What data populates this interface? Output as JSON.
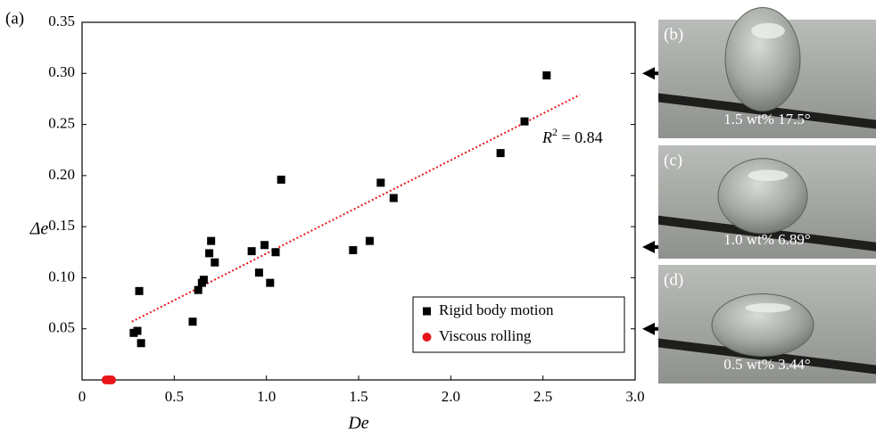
{
  "chart_data": {
    "type": "scatter",
    "panel_label": "(a)",
    "x_label": "De",
    "y_label": "Δe",
    "xlim": [
      0,
      3.0
    ],
    "ylim": [
      0,
      0.35
    ],
    "xticks": [
      0,
      0.5,
      {
        "value": 1,
        "label": "1.0"
      },
      1.5,
      {
        "value": 2,
        "label": "2.0"
      },
      2.5,
      {
        "value": 3,
        "label": "3.0"
      }
    ],
    "yticks": [
      0.05,
      {
        "value": 0.1,
        "label": "0.10"
      },
      0.15,
      {
        "value": 0.2,
        "label": "0.20"
      },
      0.25,
      {
        "value": 0.3,
        "label": "0.30"
      },
      0.35
    ],
    "legend": "lower right",
    "series": [
      {
        "name": "Rigid body motion",
        "color": "#000000",
        "marker": "square",
        "x": [
          0.28,
          0.3,
          0.31,
          0.32,
          0.6,
          0.63,
          0.65,
          0.66,
          0.69,
          0.7,
          0.72,
          0.92,
          0.96,
          0.99,
          1.02,
          1.05,
          1.08,
          1.47,
          1.56,
          1.62,
          1.69,
          2.27,
          2.4,
          2.52
        ],
        "values": [
          0.046,
          0.048,
          0.087,
          0.036,
          0.057,
          0.088,
          0.095,
          0.098,
          0.124,
          0.136,
          0.115,
          0.126,
          0.105,
          0.132,
          0.095,
          0.125,
          0.196,
          0.127,
          0.136,
          0.193,
          0.178,
          0.222,
          0.253,
          0.298
        ]
      },
      {
        "name": "Viscous rolling",
        "color": "#e8161b",
        "marker": "circle",
        "x": [
          0.13,
          0.14,
          0.15,
          0.16
        ],
        "values": [
          0,
          0,
          0,
          0
        ]
      }
    ],
    "trendline": {
      "color": "#e8161b",
      "x": [
        0.27,
        2.7
      ],
      "values": [
        0.057,
        0.279
      ],
      "label": {
        "base": "R",
        "sup": "2",
        "tail": " = 0.84"
      }
    },
    "panels": [
      {
        "label": "(b)",
        "caption": "1.5 wt% 17.5°",
        "arrow_at": 0.3
      },
      {
        "label": "(c)",
        "caption": "1.0 wt% 6.89°",
        "arrow_at": 0.13
      },
      {
        "label": "(d)",
        "caption": "0.5 wt% 3.44°",
        "arrow_at": 0.05
      }
    ]
  }
}
